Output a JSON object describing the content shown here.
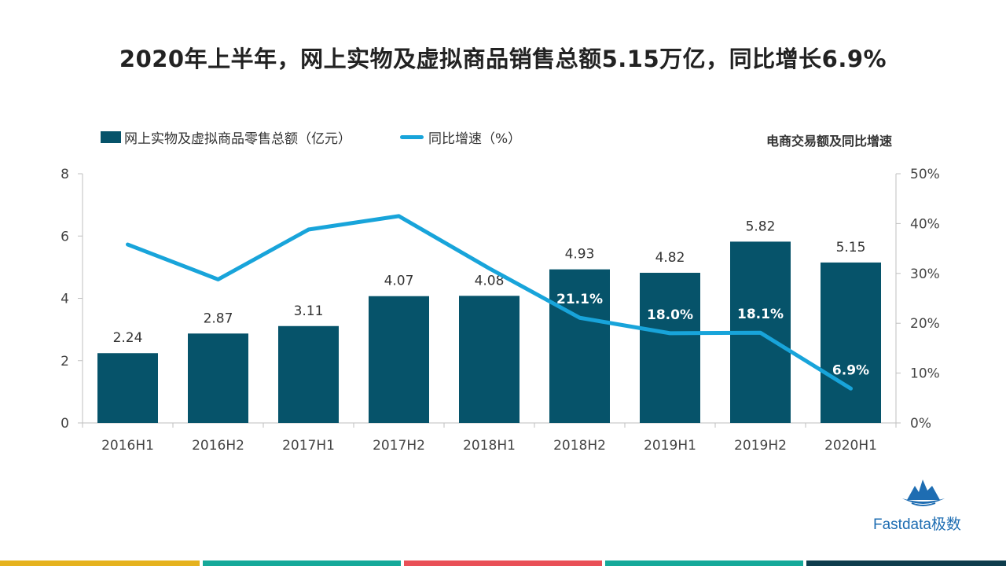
{
  "page": {
    "title": "2020年上半年，网上实物及虚拟商品销售总额5.15万亿，同比增长6.9%"
  },
  "brand": {
    "name": "Fastdata极数"
  },
  "colors": {
    "bar": "#06536a",
    "line": "#18a4da",
    "stripes": [
      "#e5b21e",
      "#16a99a",
      "#e95057",
      "#16a99a",
      "#0e3c4c"
    ]
  },
  "chart_data": {
    "type": "bar+line",
    "title": "电商交易额及同比增速",
    "categories": [
      "2016H1",
      "2016H2",
      "2017H1",
      "2017H2",
      "2018H1",
      "2018H2",
      "2019H1",
      "2019H2",
      "2020H1"
    ],
    "series": [
      {
        "name": "网上实物及虚拟商品零售总额（亿元）",
        "type": "bar",
        "axis": "left",
        "values": [
          2.24,
          2.87,
          3.11,
          4.07,
          4.08,
          4.93,
          4.82,
          5.82,
          5.15
        ],
        "labels": [
          "2.24",
          "2.87",
          "3.11",
          "4.07",
          "4.08",
          "4.93",
          "4.82",
          "5.82",
          "5.15"
        ]
      },
      {
        "name": "同比增速（%）",
        "type": "line",
        "axis": "right",
        "values": [
          35.8,
          28.8,
          38.8,
          41.5,
          31.0,
          21.1,
          18.0,
          18.1,
          6.9
        ],
        "labels": [
          "",
          "",
          "",
          "",
          "",
          "21.1%",
          "18.0%",
          "18.1%",
          "6.9%"
        ]
      }
    ],
    "y_left": {
      "min": 0,
      "max": 8,
      "ticks": [
        "0",
        "2",
        "4",
        "6",
        "8"
      ],
      "tick_values": [
        0,
        2,
        4,
        6,
        8
      ]
    },
    "y_right": {
      "min": 0,
      "max": 50,
      "ticks": [
        "0%",
        "10%",
        "20%",
        "30%",
        "40%",
        "50%"
      ],
      "tick_values": [
        0,
        10,
        20,
        30,
        40,
        50
      ]
    },
    "grid": false,
    "legend": "top-left"
  }
}
